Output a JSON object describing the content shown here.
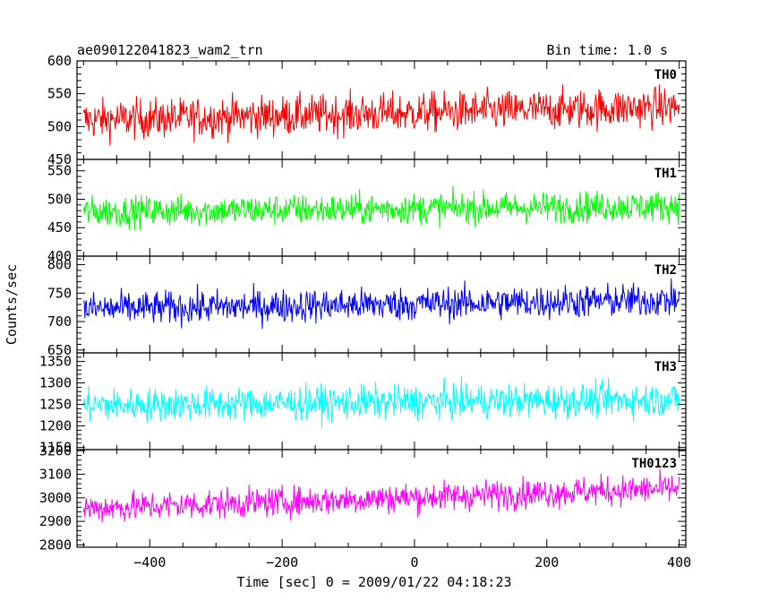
{
  "header": {
    "title": "ae090122041823_wam2_trn",
    "bin_time": "Bin time: 1.0 s"
  },
  "chart_data": {
    "type": "line",
    "title": "ae090122041823_wam2_trn",
    "bin_time_s": 1.0,
    "xlabel": "Time [sec] 0 = 2009/01/22 04:18:23",
    "ylabel": "Counts/sec",
    "xlim": [
      -510,
      410
    ],
    "x_ticks": [
      -400,
      -200,
      0,
      200,
      400
    ],
    "x_tick_labels": [
      "−400",
      "−200",
      "0",
      "200",
      "400"
    ],
    "x_range_data": [
      -500,
      400
    ],
    "grid": false,
    "panels": [
      {
        "name": "TH0",
        "color": "#ff0000",
        "ylim": [
          450,
          600
        ],
        "yticks": [
          450,
          500,
          550,
          600
        ],
        "ytick_labels": [
          "450",
          "500",
          "550",
          "600"
        ],
        "mean_start": 510,
        "mean_end": 530,
        "noise_amplitude": 28
      },
      {
        "name": "TH1",
        "color": "#00ff00",
        "ylim": [
          400,
          570
        ],
        "yticks": [
          400,
          450,
          500,
          550
        ],
        "ytick_labels": [
          "400",
          "450",
          "500",
          "550"
        ],
        "mean_start": 478,
        "mean_end": 488,
        "noise_amplitude": 25
      },
      {
        "name": "TH2",
        "color": "#0000ff",
        "ylim": [
          645,
          815
        ],
        "yticks": [
          650,
          700,
          750,
          800
        ],
        "ytick_labels": [
          "650",
          "700",
          "750",
          "800"
        ],
        "mean_start": 722,
        "mean_end": 738,
        "noise_amplitude": 27
      },
      {
        "name": "TH3",
        "color": "#00ffff",
        "ylim": [
          1145,
          1370
        ],
        "yticks": [
          1150,
          1200,
          1250,
          1300,
          1350
        ],
        "ytick_labels": [
          "1150",
          "1200",
          "1250",
          "1300",
          "1350"
        ],
        "mean_start": 1248,
        "mean_end": 1262,
        "noise_amplitude": 36
      },
      {
        "name": "TH0123",
        "color": "#ff00ff",
        "ylim": [
          2790,
          3205
        ],
        "yticks": [
          2800,
          2900,
          3000,
          3100,
          3200
        ],
        "ytick_labels": [
          "2800",
          "2900",
          "3000",
          "3100",
          "3200"
        ],
        "mean_start": 2955,
        "mean_end": 3040,
        "noise_amplitude": 58
      }
    ]
  }
}
